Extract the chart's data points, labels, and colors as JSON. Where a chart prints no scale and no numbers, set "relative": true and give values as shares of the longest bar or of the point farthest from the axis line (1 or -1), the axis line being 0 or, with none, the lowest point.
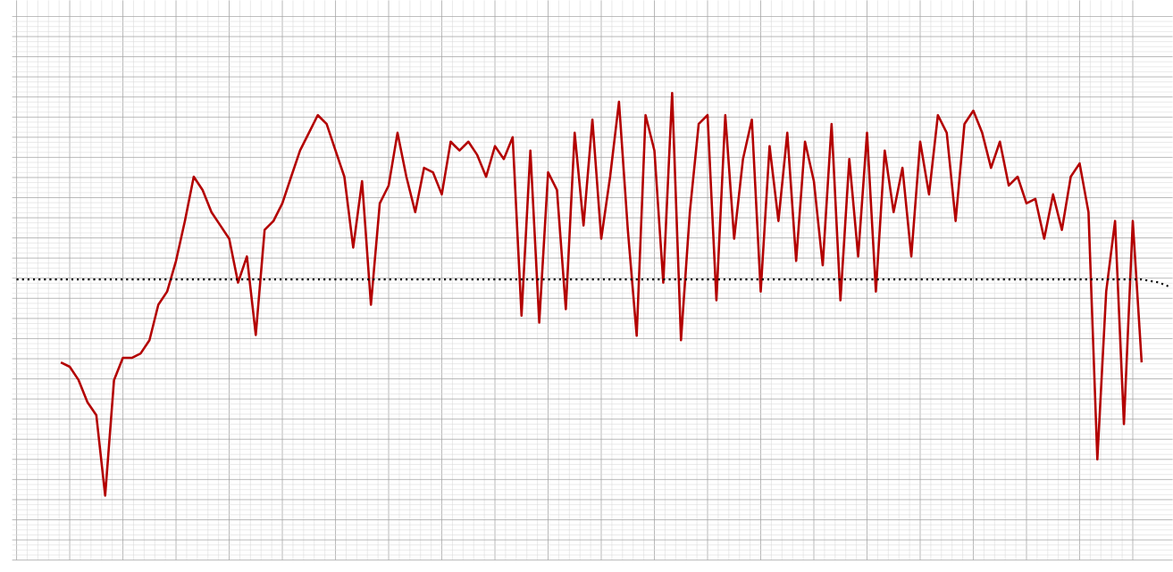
{
  "chart_data": {
    "type": "line",
    "relative": true,
    "grid": true,
    "marker": "none",
    "categories": [
      null,
      null,
      null,
      null,
      null,
      null,
      null,
      null,
      null,
      null,
      null,
      null,
      null,
      null,
      null,
      null,
      null,
      null,
      null,
      null,
      null,
      null,
      null,
      null,
      null,
      null,
      null,
      null,
      null,
      null,
      null,
      null,
      null,
      null,
      null,
      null,
      null,
      null,
      null,
      null,
      null,
      null,
      null,
      null,
      null,
      null,
      null,
      null,
      null,
      null,
      null,
      null,
      null,
      null,
      null,
      null,
      null,
      null,
      null,
      null,
      null,
      null,
      null,
      null,
      null,
      null,
      null,
      null,
      null,
      null,
      null,
      null,
      null,
      null,
      null,
      null,
      null,
      null,
      null,
      null,
      null,
      null,
      null,
      null,
      null,
      null,
      null,
      null,
      null,
      null,
      null,
      null,
      null,
      null,
      null,
      null,
      null,
      null,
      null,
      null,
      null,
      null,
      null,
      null,
      null,
      null,
      null,
      null,
      null,
      null,
      null,
      null,
      null,
      null,
      null,
      null,
      null,
      null,
      null,
      null,
      null,
      null,
      null,
      null,
      null,
      null,
      null,
      null,
      null,
      null,
      null
    ],
    "series": [
      {
        "color": "#b30000",
        "line_style": "solid",
        "values": [
          null,
          null,
          null,
          null,
          null,
          0.331,
          0.32,
          0.287,
          0.232,
          0.2,
          0,
          0.287,
          0.342,
          0.342,
          0.353,
          0.386,
          0.474,
          0.507,
          0.583,
          0.682,
          0.792,
          0.759,
          0.704,
          0.671,
          0.638,
          0.529,
          0.594,
          0.399,
          0.66,
          0.682,
          0.726,
          0.792,
          0.857,
          0.901,
          0.945,
          0.923,
          0.857,
          0.792,
          0.616,
          0.781,
          0.474,
          0.726,
          0.77,
          0.901,
          0.792,
          0.704,
          0.814,
          0.803,
          0.748,
          0.879,
          0.857,
          0.879,
          0.846,
          0.792,
          0.868,
          0.836,
          0.89,
          0.447,
          0.857,
          0.43,
          0.803,
          0.759,
          0.463,
          0.901,
          0.671,
          0.934,
          0.638,
          0.792,
          0.978,
          0.66,
          0.397,
          0.945,
          0.857,
          0.529,
          1,
          0.386,
          0.704,
          0.923,
          0.945,
          0.485,
          0.945,
          0.638,
          0.836,
          0.934,
          0.507,
          0.868,
          0.682,
          0.901,
          0.583,
          0.879,
          0.781,
          0.572,
          0.923,
          0.485,
          0.836,
          0.594,
          0.901,
          0.507,
          0.857,
          0.704,
          0.814,
          0.594,
          0.879,
          0.748,
          0.945,
          0.901,
          0.682,
          0.923,
          0.956,
          0.901,
          0.814,
          0.879,
          0.77,
          0.792,
          0.726,
          0.737,
          0.638,
          0.748,
          0.66,
          0.792,
          0.825,
          0.704,
          0.09,
          0.507,
          0.682,
          0.178,
          0.682,
          0.331,
          null,
          null,
          null
        ]
      },
      {
        "color": "#000000",
        "line_style": "dotted",
        "values": [
          0.537,
          0.537,
          0.537,
          0.537,
          0.537,
          0.537,
          0.537,
          0.537,
          0.537,
          0.537,
          0.537,
          0.537,
          0.537,
          0.537,
          0.537,
          0.537,
          0.537,
          0.537,
          0.537,
          0.537,
          0.537,
          0.537,
          0.537,
          0.537,
          0.537,
          0.537,
          0.537,
          0.537,
          0.537,
          0.537,
          0.537,
          0.537,
          0.537,
          0.537,
          0.537,
          0.537,
          0.537,
          0.537,
          0.537,
          0.537,
          0.537,
          0.537,
          0.537,
          0.537,
          0.537,
          0.537,
          0.537,
          0.537,
          0.537,
          0.537,
          0.537,
          0.537,
          0.537,
          0.537,
          0.537,
          0.537,
          0.537,
          0.537,
          0.537,
          0.537,
          0.537,
          0.537,
          0.537,
          0.537,
          0.537,
          0.537,
          0.537,
          0.537,
          0.537,
          0.537,
          0.537,
          0.537,
          0.537,
          0.537,
          0.537,
          0.537,
          0.537,
          0.537,
          0.537,
          0.537,
          0.537,
          0.537,
          0.537,
          0.537,
          0.537,
          0.537,
          0.537,
          0.537,
          0.537,
          0.537,
          0.537,
          0.537,
          0.537,
          0.537,
          0.537,
          0.537,
          0.537,
          0.537,
          0.537,
          0.537,
          0.537,
          0.537,
          0.537,
          0.537,
          0.537,
          0.537,
          0.537,
          0.537,
          0.537,
          0.537,
          0.537,
          0.537,
          0.537,
          0.537,
          0.537,
          0.537,
          0.537,
          0.537,
          0.537,
          0.537,
          0.537,
          0.537,
          0.537,
          0.537,
          0.537,
          0.537,
          0.537,
          0.537,
          0.533,
          0.529,
          0.52
        ]
      }
    ]
  }
}
